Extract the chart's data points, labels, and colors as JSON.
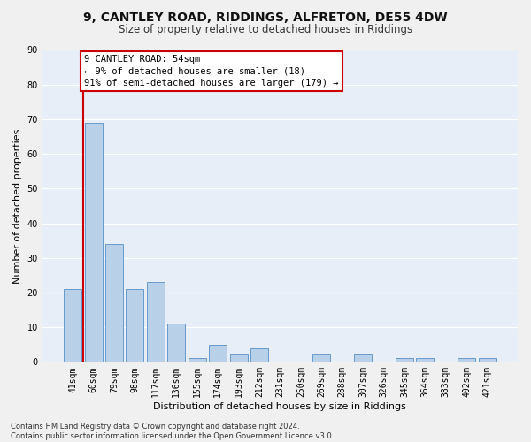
{
  "title1": "9, CANTLEY ROAD, RIDDINGS, ALFRETON, DE55 4DW",
  "title2": "Size of property relative to detached houses in Riddings",
  "xlabel": "Distribution of detached houses by size in Riddings",
  "ylabel": "Number of detached properties",
  "categories": [
    "41sqm",
    "60sqm",
    "79sqm",
    "98sqm",
    "117sqm",
    "136sqm",
    "155sqm",
    "174sqm",
    "193sqm",
    "212sqm",
    "231sqm",
    "250sqm",
    "269sqm",
    "288sqm",
    "307sqm",
    "326sqm",
    "345sqm",
    "364sqm",
    "383sqm",
    "402sqm",
    "421sqm"
  ],
  "values": [
    21,
    69,
    34,
    21,
    23,
    11,
    1,
    5,
    2,
    4,
    0,
    0,
    2,
    0,
    2,
    0,
    1,
    1,
    0,
    1,
    1
  ],
  "bar_color": "#b8d0e8",
  "bar_edge_color": "#6699cc",
  "bg_color": "#e8eef8",
  "grid_color": "#ffffff",
  "annotation_box_text": "9 CANTLEY ROAD: 54sqm\n← 9% of detached houses are smaller (18)\n91% of semi-detached houses are larger (179) →",
  "annotation_box_color": "#ffffff",
  "annotation_box_edge_color": "#cc0000",
  "vline_color": "#cc0000",
  "ylim": [
    0,
    90
  ],
  "yticks": [
    0,
    10,
    20,
    30,
    40,
    50,
    60,
    70,
    80,
    90
  ],
  "footnote": "Contains HM Land Registry data © Crown copyright and database right 2024.\nContains public sector information licensed under the Open Government Licence v3.0.",
  "title1_fontsize": 10,
  "title2_fontsize": 8.5,
  "xlabel_fontsize": 8,
  "ylabel_fontsize": 8,
  "tick_fontsize": 7,
  "annot_fontsize": 7.5,
  "footnote_fontsize": 6
}
